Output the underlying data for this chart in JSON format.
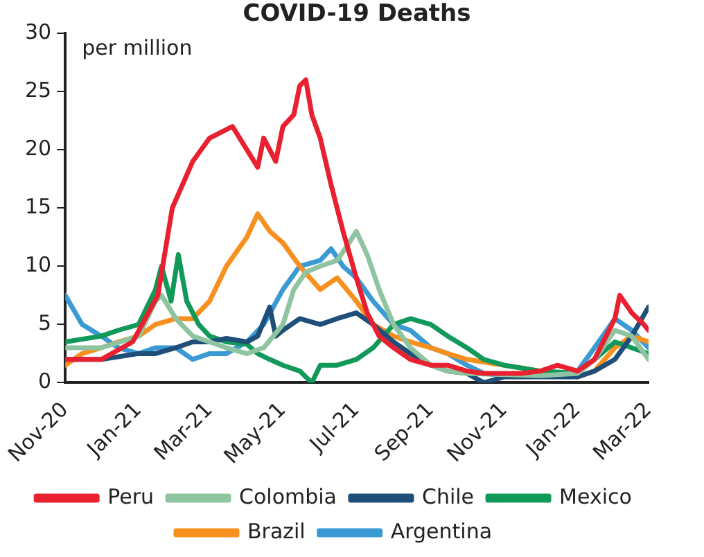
{
  "chart_data": {
    "type": "line",
    "title": "COVID-19 Deaths",
    "ylabel": "per million",
    "xlim": [
      "2020-11-01",
      "2022-03-01"
    ],
    "xticks": [
      {
        "value": "2020-11-01",
        "label": "Nov-20"
      },
      {
        "value": "2021-01-01",
        "label": "Jan-21"
      },
      {
        "value": "2021-03-01",
        "label": "Mar-21"
      },
      {
        "value": "2021-05-01",
        "label": "May-21"
      },
      {
        "value": "2021-07-01",
        "label": "Jul-21"
      },
      {
        "value": "2021-09-01",
        "label": "Sep-21"
      },
      {
        "value": "2021-11-01",
        "label": "Nov-21"
      },
      {
        "value": "2022-01-01",
        "label": "Jan-22"
      },
      {
        "value": "2022-03-01",
        "label": "Mar-22"
      }
    ],
    "ylim": [
      0,
      30
    ],
    "yticks": [
      0,
      5,
      10,
      15,
      20,
      25,
      30
    ],
    "grid": false,
    "legend": "bottom",
    "marker": "none",
    "line_style": "solid",
    "series": [
      {
        "name": "Peru",
        "color": "#e8202f",
        "x": [
          "2020-11-01",
          "2020-12-01",
          "2020-12-27",
          "2021-01-17",
          "2021-01-29",
          "2021-02-15",
          "2021-03-01",
          "2021-03-20",
          "2021-04-01",
          "2021-04-10",
          "2021-04-15",
          "2021-04-25",
          "2021-05-01",
          "2021-05-10",
          "2021-05-15",
          "2021-05-20",
          "2021-05-25",
          "2021-06-01",
          "2021-06-10",
          "2021-06-20",
          "2021-07-01",
          "2021-07-10",
          "2021-07-20",
          "2021-08-01",
          "2021-08-15",
          "2021-09-01",
          "2021-09-15",
          "2021-10-01",
          "2021-10-15",
          "2021-11-01",
          "2021-11-15",
          "2021-12-01",
          "2021-12-15",
          "2022-01-01",
          "2022-01-15",
          "2022-02-01",
          "2022-02-05",
          "2022-02-15",
          "2022-02-25",
          "2022-03-01"
        ],
        "values": [
          2,
          2,
          3.5,
          7.5,
          15,
          19,
          21,
          22,
          20,
          18.5,
          21,
          19,
          22,
          23,
          25.5,
          26,
          23,
          21,
          17,
          13,
          9,
          6,
          4,
          3,
          2,
          1.5,
          1.5,
          1,
          0.8,
          0.8,
          0.8,
          1,
          1.5,
          1,
          2,
          5.5,
          7.5,
          6,
          5,
          4.5
        ]
      },
      {
        "name": "Colombia",
        "color": "#8fc4a0",
        "x": [
          "2020-11-01",
          "2020-12-01",
          "2021-01-01",
          "2021-01-15",
          "2021-01-20",
          "2021-02-01",
          "2021-02-15",
          "2021-03-01",
          "2021-03-15",
          "2021-04-01",
          "2021-04-15",
          "2021-05-01",
          "2021-05-10",
          "2021-05-20",
          "2021-06-01",
          "2021-06-15",
          "2021-06-25",
          "2021-07-01",
          "2021-07-10",
          "2021-07-20",
          "2021-08-01",
          "2021-08-15",
          "2021-09-01",
          "2021-09-15",
          "2021-10-01",
          "2021-11-01",
          "2021-12-01",
          "2022-01-01",
          "2022-01-15",
          "2022-02-01",
          "2022-02-15",
          "2022-03-01"
        ],
        "values": [
          3,
          3,
          4,
          7,
          7.5,
          5.5,
          4,
          3.5,
          3,
          2.5,
          3,
          5,
          8,
          9.5,
          10,
          10.5,
          12,
          13,
          11,
          8,
          5,
          3,
          1.5,
          1,
          0.8,
          0.7,
          0.6,
          0.8,
          2,
          4.5,
          4,
          2
        ]
      },
      {
        "name": "Chile",
        "color": "#1f4e79",
        "x": [
          "2020-11-01",
          "2020-12-01",
          "2021-01-01",
          "2021-01-15",
          "2021-02-01",
          "2021-02-15",
          "2021-03-01",
          "2021-03-15",
          "2021-04-01",
          "2021-04-10",
          "2021-04-20",
          "2021-04-25",
          "2021-05-01",
          "2021-05-15",
          "2021-06-01",
          "2021-06-15",
          "2021-07-01",
          "2021-07-15",
          "2021-08-01",
          "2021-08-15",
          "2021-09-01",
          "2021-09-15",
          "2021-10-01",
          "2021-10-15",
          "2021-11-01",
          "2021-12-01",
          "2022-01-01",
          "2022-01-15",
          "2022-02-01",
          "2022-02-15",
          "2022-03-01"
        ],
        "values": [
          2,
          2,
          2.5,
          2.5,
          3,
          3.5,
          3.5,
          3.8,
          3.5,
          4,
          6.5,
          4,
          4.5,
          5.5,
          5,
          5.5,
          6,
          5,
          3.5,
          2.5,
          1.5,
          1,
          0.8,
          0,
          0.5,
          0.5,
          0.5,
          1,
          2,
          4,
          6.5
        ]
      },
      {
        "name": "Mexico",
        "color": "#11995a",
        "x": [
          "2020-11-01",
          "2020-12-01",
          "2020-12-15",
          "2021-01-01",
          "2021-01-15",
          "2021-01-20",
          "2021-01-28",
          "2021-02-03",
          "2021-02-10",
          "2021-02-20",
          "2021-03-01",
          "2021-03-15",
          "2021-04-01",
          "2021-04-10",
          "2021-04-20",
          "2021-05-01",
          "2021-05-15",
          "2021-05-25",
          "2021-06-01",
          "2021-06-15",
          "2021-07-01",
          "2021-07-15",
          "2021-08-01",
          "2021-08-15",
          "2021-09-01",
          "2021-09-15",
          "2021-10-01",
          "2021-10-15",
          "2021-11-01",
          "2021-12-01",
          "2022-01-01",
          "2022-01-15",
          "2022-02-01",
          "2022-02-15",
          "2022-03-01"
        ],
        "values": [
          3.5,
          4,
          4.5,
          5,
          8,
          10,
          7,
          11,
          7,
          5,
          4,
          3.5,
          3.3,
          2.5,
          2,
          1.5,
          1,
          0,
          1.5,
          1.5,
          2,
          3,
          5,
          5.5,
          5,
          4,
          3,
          2,
          1.5,
          1,
          0.8,
          2,
          3.5,
          3,
          2.5
        ]
      },
      {
        "name": "Brazil",
        "color": "#f7901e",
        "x": [
          "2020-11-01",
          "2020-11-15",
          "2020-12-01",
          "2020-12-15",
          "2021-01-01",
          "2021-01-15",
          "2021-02-01",
          "2021-02-15",
          "2021-03-01",
          "2021-03-15",
          "2021-04-01",
          "2021-04-10",
          "2021-04-20",
          "2021-05-01",
          "2021-05-15",
          "2021-06-01",
          "2021-06-15",
          "2021-07-01",
          "2021-07-15",
          "2021-08-01",
          "2021-08-15",
          "2021-09-01",
          "2021-09-15",
          "2021-10-01",
          "2021-11-01",
          "2021-12-01",
          "2022-01-01",
          "2022-01-15",
          "2022-02-01",
          "2022-02-15",
          "2022-03-01"
        ],
        "values": [
          1.5,
          2.5,
          3,
          3.5,
          4,
          5,
          5.5,
          5.5,
          7,
          10,
          12.5,
          14.5,
          13,
          12,
          10,
          8,
          9,
          7,
          5,
          4,
          3.5,
          3,
          2.5,
          2,
          1.5,
          1,
          0.5,
          1,
          3,
          4,
          3.5
        ]
      },
      {
        "name": "Argentina",
        "color": "#3a9ad4",
        "x": [
          "2020-11-01",
          "2020-11-15",
          "2020-12-01",
          "2020-12-15",
          "2021-01-01",
          "2021-01-15",
          "2021-02-01",
          "2021-02-15",
          "2021-03-01",
          "2021-03-15",
          "2021-04-01",
          "2021-04-15",
          "2021-05-01",
          "2021-05-15",
          "2021-06-01",
          "2021-06-10",
          "2021-06-20",
          "2021-07-01",
          "2021-07-15",
          "2021-08-01",
          "2021-08-15",
          "2021-09-01",
          "2021-09-15",
          "2021-10-01",
          "2021-10-15",
          "2021-11-01",
          "2021-12-01",
          "2022-01-01",
          "2022-01-15",
          "2022-02-01",
          "2022-02-15",
          "2022-03-01"
        ],
        "values": [
          7.5,
          5,
          4,
          3,
          2.5,
          3,
          3,
          2,
          2.5,
          2.5,
          3.5,
          5,
          8,
          10,
          10.5,
          11.5,
          10,
          9,
          7,
          5,
          4.5,
          3,
          2.5,
          1.5,
          0.8,
          0.6,
          0.6,
          1,
          3,
          5.5,
          4.5,
          3
        ]
      }
    ]
  }
}
